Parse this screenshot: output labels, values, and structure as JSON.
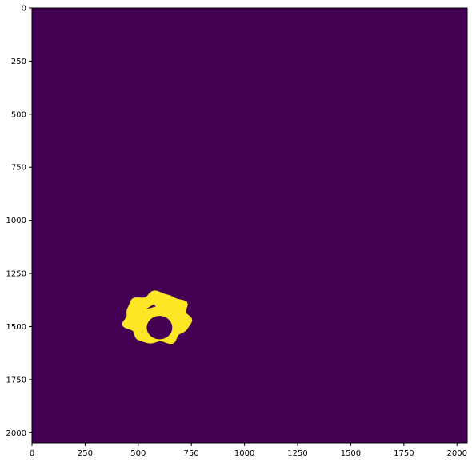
{
  "chart_data": {
    "type": "heatmap",
    "title": "",
    "xlabel": "",
    "ylabel": "",
    "xlim": [
      0,
      2048
    ],
    "ylim": [
      2048,
      0
    ],
    "x_ticks": [
      0,
      250,
      500,
      750,
      1000,
      1250,
      1500,
      1750,
      2000
    ],
    "y_ticks": [
      0,
      250,
      500,
      750,
      1000,
      1250,
      1500,
      1750,
      2000
    ],
    "colormap": "viridis",
    "background_value": 0,
    "mask_value": 1,
    "region": {
      "description_values": "binary mask blob (value 1) shaped like an irregular ring",
      "center_x": 590,
      "center_y": 1460,
      "outer_radius_x": 155,
      "outer_radius_y": 120,
      "hole_center_x": 600,
      "hole_center_y": 1505,
      "hole_radius_x": 60,
      "hole_radius_y": 55,
      "gap_start_angle_deg": 60,
      "gap_end_angle_deg": 120
    },
    "colors": {
      "background": "#440154",
      "mask": "#fde725",
      "axis": "#000000"
    }
  }
}
